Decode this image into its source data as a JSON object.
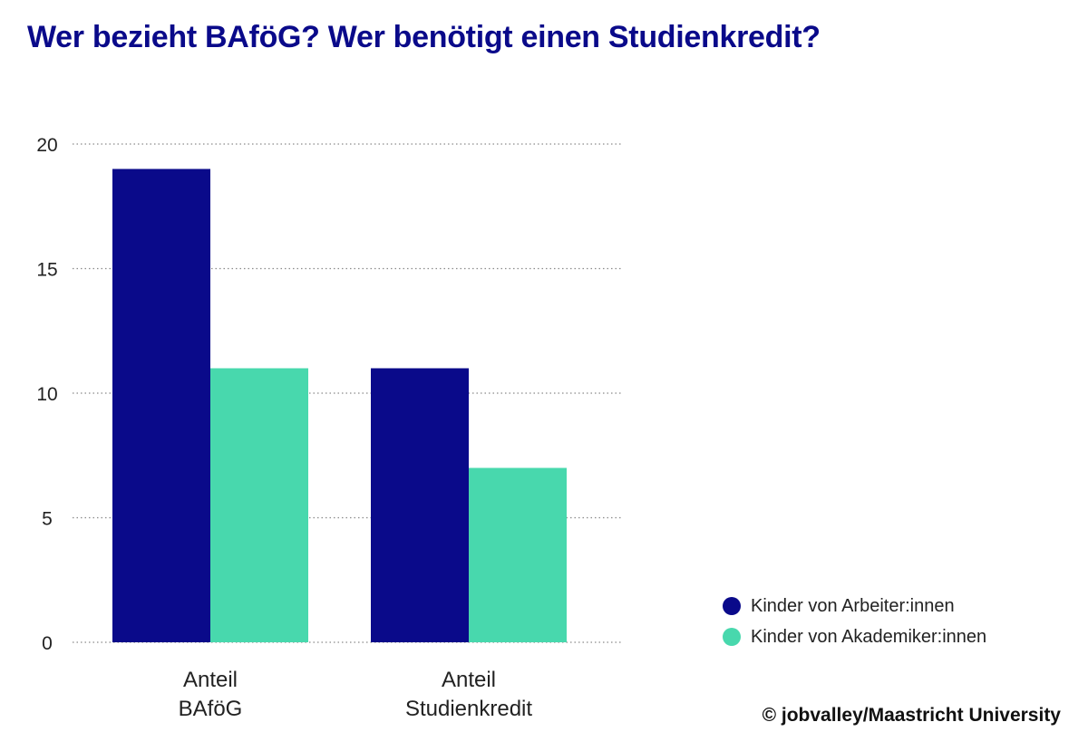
{
  "title": "Wer bezieht BAföG? Wer benötigt einen Studienkredit?",
  "credit": "© jobvalley/Maastricht University",
  "chart_data": {
    "type": "bar",
    "categories": [
      [
        "Anteil",
        "BAföG"
      ],
      [
        "Anteil",
        "Studienkredit"
      ]
    ],
    "series": [
      {
        "name": "Kinder von Arbeiter:innen",
        "values": [
          19,
          11
        ],
        "color": "#0a0a8a"
      },
      {
        "name": "Kinder von Akademiker:innen",
        "values": [
          11,
          7
        ],
        "color": "#48d8ad"
      }
    ],
    "yticks": [
      "0",
      "5",
      "10",
      "15",
      "20"
    ],
    "ylim": [
      0,
      20
    ],
    "grid": true,
    "grid_style": "dotted",
    "legend_position": "bottom-right"
  }
}
